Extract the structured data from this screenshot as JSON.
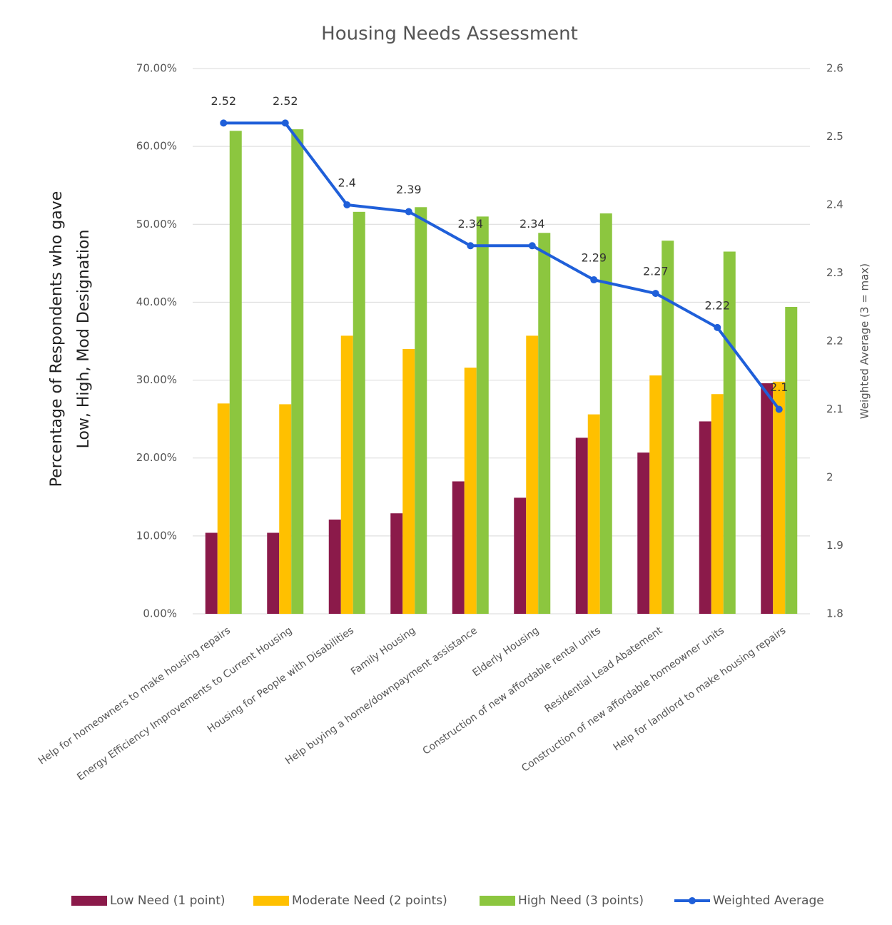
{
  "chart_data": {
    "type": "bar",
    "title": "Housing Needs Assessment",
    "categories": [
      "Help for homeowners to make housing repairs",
      "Energy Efficiency Improvements to Current Housing",
      "Housing for People with Disabilities",
      "Family Housing",
      "Help buying a home/downpayment assistance",
      "Elderly Housing",
      "Construction of new affordable rental units",
      "Residential Lead Abatement",
      "Construction of new affordable homeowner units",
      "Help for landlord to make housing repairs"
    ],
    "series": [
      {
        "name": "Low Need (1 point)",
        "color": "#8b1a4a",
        "values": [
          10.4,
          10.4,
          12.1,
          12.9,
          17.0,
          14.9,
          22.6,
          20.7,
          24.7,
          29.6
        ]
      },
      {
        "name": "Moderate Need (2 points)",
        "color": "#ffc000",
        "values": [
          27.0,
          26.9,
          35.7,
          34.0,
          31.6,
          35.7,
          25.6,
          30.6,
          28.2,
          29.8
        ]
      },
      {
        "name": "High Need (3 points)",
        "color": "#8cc63f",
        "values": [
          62.0,
          62.2,
          51.6,
          52.2,
          51.0,
          48.9,
          51.4,
          47.9,
          46.5,
          39.4
        ]
      },
      {
        "name": "Weighted Average",
        "color": "#1f5fd9",
        "type": "line",
        "axis": "y2",
        "values": [
          2.52,
          2.52,
          2.4,
          2.39,
          2.34,
          2.34,
          2.29,
          2.27,
          2.22,
          2.1
        ]
      }
    ],
    "ylabel": [
      "Percentage of Respondents who gave",
      "Low, High, Mod Designation"
    ],
    "y2label": "Weighted Average (3 = max)",
    "ylim": [
      0,
      70
    ],
    "yticks": [
      {
        "value": 0,
        "label": "0.00%"
      },
      {
        "value": 10,
        "label": "10.00%"
      },
      {
        "value": 20,
        "label": "20.00%"
      },
      {
        "value": 30,
        "label": "30.00%"
      },
      {
        "value": 40,
        "label": "40.00%"
      },
      {
        "value": 50,
        "label": "50.00%"
      },
      {
        "value": 60,
        "label": "60.00%"
      },
      {
        "value": 70,
        "label": "70.00%"
      }
    ],
    "y2lim": [
      1.8,
      2.6
    ],
    "y2ticks": [
      1.8,
      1.9,
      2,
      2.1,
      2.2,
      2.3,
      2.4,
      2.5,
      2.6
    ],
    "grid": true,
    "legend": "bottom"
  }
}
